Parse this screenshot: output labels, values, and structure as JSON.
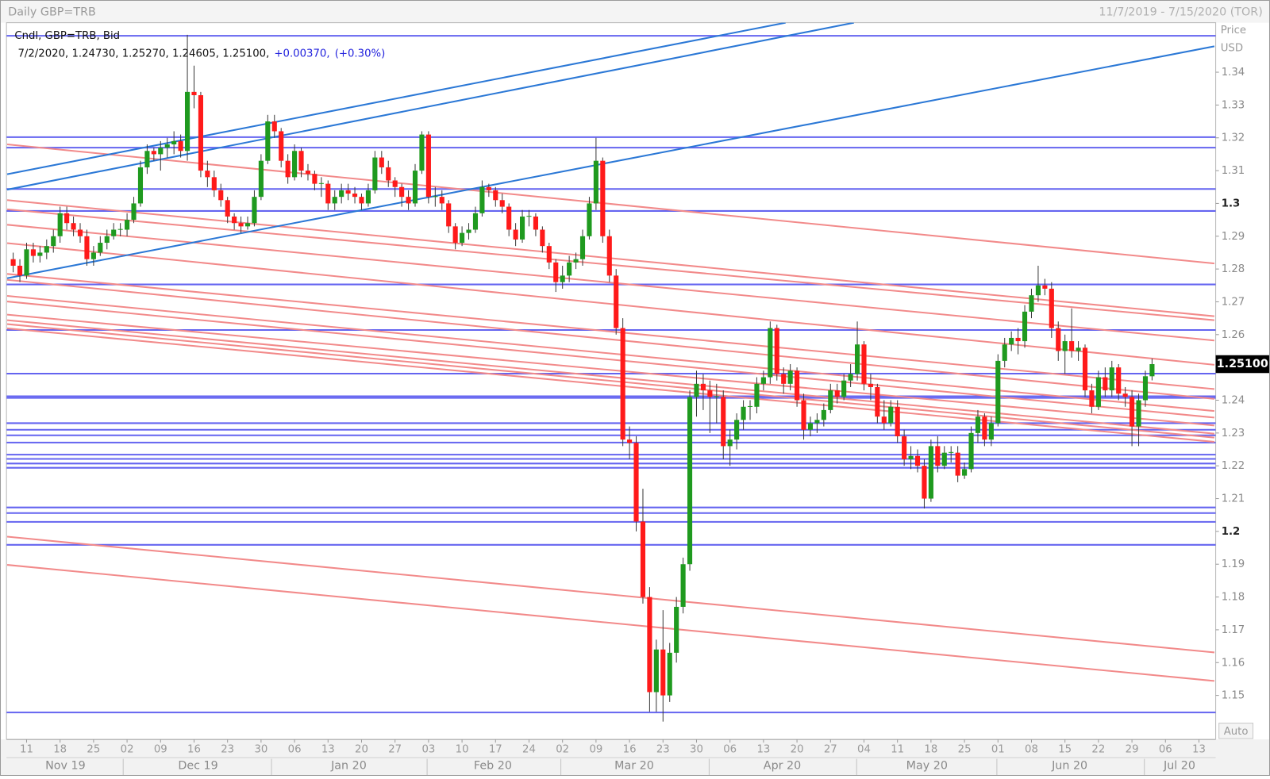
{
  "chart_data": {
    "type": "candlestick",
    "title": "Daily GBP=TRB",
    "date_range": "11/7/2019 - 7/15/2020 (TOR)",
    "legend": "Cndl, GBP=TRB, Bid",
    "info": "7/2/2020, 1.24730, 1.25270, 1.24605, 1.25100,",
    "change": "+0.00370,",
    "change_pct": "(+0.30%)",
    "axis_title": "Price",
    "axis_unit": "USD",
    "scale_button": "Auto",
    "up_color": "#1f9a1f",
    "down_color": "#ff1a1a",
    "wick_color": "#3a3a3a",
    "level_color": "#6464f0",
    "channel_color": "#2b78d6",
    "trend_color": "#f28a8a",
    "last_price": {
      "value": 1.251,
      "label": "1.25100"
    },
    "xlim": [
      -1,
      179.5
    ],
    "ylim": [
      1.1366,
      1.3551
    ],
    "yticks": [
      1.15,
      1.16,
      1.17,
      1.18,
      1.19,
      1.2,
      1.21,
      1.22,
      1.23,
      1.24,
      1.25,
      1.26,
      1.27,
      1.28,
      1.29,
      1.3,
      1.31,
      1.32,
      1.33,
      1.34
    ],
    "xticks": [
      {
        "value": 2,
        "label": "11"
      },
      {
        "value": 7,
        "label": "18"
      },
      {
        "value": 12,
        "label": "25"
      },
      {
        "value": 17,
        "label": "02"
      },
      {
        "value": 22,
        "label": "09"
      },
      {
        "value": 27,
        "label": "16"
      },
      {
        "value": 32,
        "label": "23"
      },
      {
        "value": 37,
        "label": "30"
      },
      {
        "value": 42,
        "label": "06"
      },
      {
        "value": 47,
        "label": "13"
      },
      {
        "value": 52,
        "label": "20"
      },
      {
        "value": 57,
        "label": "27"
      },
      {
        "value": 62,
        "label": "03"
      },
      {
        "value": 67,
        "label": "10"
      },
      {
        "value": 72,
        "label": "17"
      },
      {
        "value": 77,
        "label": "24"
      },
      {
        "value": 82,
        "label": "02"
      },
      {
        "value": 87,
        "label": "09"
      },
      {
        "value": 92,
        "label": "16"
      },
      {
        "value": 97,
        "label": "23"
      },
      {
        "value": 102,
        "label": "30"
      },
      {
        "value": 107,
        "label": "06"
      },
      {
        "value": 112,
        "label": "13"
      },
      {
        "value": 117,
        "label": "20"
      },
      {
        "value": 122,
        "label": "27"
      },
      {
        "value": 127,
        "label": "04"
      },
      {
        "value": 132,
        "label": "11"
      },
      {
        "value": 137,
        "label": "18"
      },
      {
        "value": 142,
        "label": "25"
      },
      {
        "value": 147,
        "label": "01"
      },
      {
        "value": 152,
        "label": "08"
      },
      {
        "value": 157,
        "label": "15"
      },
      {
        "value": 162,
        "label": "22"
      },
      {
        "value": 167,
        "label": "29"
      },
      {
        "value": 172,
        "label": "06"
      },
      {
        "value": 177,
        "label": "13"
      }
    ],
    "months": [
      {
        "value": 7.8,
        "label": "Nov 19"
      },
      {
        "value": 27.6,
        "label": "Dec 19"
      },
      {
        "value": 50.1,
        "label": "Jan 20"
      },
      {
        "value": 71.6,
        "label": "Feb 20"
      },
      {
        "value": 92.7,
        "label": "Mar 20"
      },
      {
        "value": 114.8,
        "label": "Apr 20"
      },
      {
        "value": 136.4,
        "label": "May 20"
      },
      {
        "value": 157.7,
        "label": "Jun 20"
      },
      {
        "value": 174.1,
        "label": "Jul 20"
      }
    ],
    "levels": [
      1.3511,
      1.3202,
      1.317,
      1.3044,
      1.2977,
      1.2753,
      1.2614,
      1.2481,
      1.2412,
      1.2407,
      1.233,
      1.231,
      1.2293,
      1.2271,
      1.2234,
      1.2221,
      1.2207,
      1.2194,
      1.2073,
      1.2056,
      1.2029,
      1.1959,
      1.1448
    ],
    "channels": [
      {
        "x": [
          -0.9,
          115.3
        ],
        "y": [
          1.3089,
          1.3551
        ]
      },
      {
        "x": [
          -0.9,
          125.5
        ],
        "y": [
          1.3042,
          1.3551
        ]
      },
      {
        "x": [
          -0.9,
          179.3
        ],
        "y": [
          1.2772,
          1.3479
        ]
      }
    ],
    "trends": [
      {
        "x": [
          -0.9,
          179.3
        ],
        "y": [
          1.318,
          1.2817
        ]
      },
      {
        "x": [
          -0.9,
          179.3
        ],
        "y": [
          1.301,
          1.2656
        ]
      },
      {
        "x": [
          -0.9,
          179.3
        ],
        "y": [
          1.2982,
          1.2644
        ]
      },
      {
        "x": [
          -0.9,
          179.3
        ],
        "y": [
          1.2935,
          1.2582
        ]
      },
      {
        "x": [
          -0.9,
          179.3
        ],
        "y": [
          1.2879,
          1.2508
        ]
      },
      {
        "x": [
          -0.9,
          179.3
        ],
        "y": [
          1.2785,
          1.2434
        ]
      },
      {
        "x": [
          -0.9,
          179.3
        ],
        "y": [
          1.2767,
          1.2404
        ]
      },
      {
        "x": [
          -0.9,
          179.3
        ],
        "y": [
          1.2718,
          1.2367
        ]
      },
      {
        "x": [
          -0.9,
          179.3
        ],
        "y": [
          1.2701,
          1.2347
        ]
      },
      {
        "x": [
          -0.9,
          179.3
        ],
        "y": [
          1.2661,
          1.2323
        ]
      },
      {
        "x": [
          -0.9,
          179.3
        ],
        "y": [
          1.2644,
          1.2298
        ]
      },
      {
        "x": [
          -0.9,
          179.3
        ],
        "y": [
          1.2632,
          1.2286
        ]
      },
      {
        "x": [
          -0.9,
          179.3
        ],
        "y": [
          1.2619,
          1.2273
        ]
      },
      {
        "x": [
          -0.9,
          179.3
        ],
        "y": [
          1.1984,
          1.1631
        ]
      },
      {
        "x": [
          -0.9,
          179.3
        ],
        "y": [
          1.1898,
          1.1544
        ]
      }
    ],
    "candles": [
      [
        1.283,
        1.285,
        1.279,
        1.281
      ],
      [
        1.281,
        1.283,
        1.276,
        1.278
      ],
      [
        1.278,
        1.288,
        1.277,
        1.286
      ],
      [
        1.286,
        1.288,
        1.282,
        1.284
      ],
      [
        1.284,
        1.287,
        1.282,
        1.285
      ],
      [
        1.285,
        1.289,
        1.283,
        1.287
      ],
      [
        1.287,
        1.292,
        1.285,
        1.29
      ],
      [
        1.29,
        1.299,
        1.288,
        1.297
      ],
      [
        1.297,
        1.299,
        1.292,
        1.294
      ],
      [
        1.294,
        1.296,
        1.29,
        1.292
      ],
      [
        1.292,
        1.294,
        1.288,
        1.29
      ],
      [
        1.29,
        1.292,
        1.281,
        1.283
      ],
      [
        1.283,
        1.287,
        1.281,
        1.285
      ],
      [
        1.285,
        1.29,
        1.284,
        1.288
      ],
      [
        1.288,
        1.292,
        1.286,
        1.29
      ],
      [
        1.29,
        1.294,
        1.289,
        1.292
      ],
      [
        1.292,
        1.294,
        1.29,
        1.2922
      ],
      [
        1.292,
        1.297,
        1.29,
        1.295
      ],
      [
        1.295,
        1.302,
        1.294,
        1.3
      ],
      [
        1.3,
        1.313,
        1.299,
        1.311
      ],
      [
        1.311,
        1.318,
        1.309,
        1.316
      ],
      [
        1.316,
        1.317,
        1.313,
        1.315
      ],
      [
        1.315,
        1.319,
        1.31,
        1.317
      ],
      [
        1.317,
        1.32,
        1.314,
        1.318
      ],
      [
        1.318,
        1.322,
        1.315,
        1.319
      ],
      [
        1.319,
        1.321,
        1.314,
        1.316
      ],
      [
        1.316,
        1.3514,
        1.313,
        1.334
      ],
      [
        1.334,
        1.342,
        1.329,
        1.333
      ],
      [
        1.333,
        1.334,
        1.308,
        1.31
      ],
      [
        1.31,
        1.313,
        1.305,
        1.308
      ],
      [
        1.308,
        1.31,
        1.302,
        1.304
      ],
      [
        1.304,
        1.306,
        1.299,
        1.301
      ],
      [
        1.301,
        1.302,
        1.294,
        1.296
      ],
      [
        1.296,
        1.297,
        1.292,
        1.294
      ],
      [
        1.294,
        1.296,
        1.291,
        1.293
      ],
      [
        1.293,
        1.296,
        1.292,
        1.294
      ],
      [
        1.294,
        1.304,
        1.293,
        1.302
      ],
      [
        1.302,
        1.315,
        1.301,
        1.313
      ],
      [
        1.313,
        1.327,
        1.312,
        1.325
      ],
      [
        1.325,
        1.327,
        1.32,
        1.322
      ],
      [
        1.322,
        1.323,
        1.311,
        1.313
      ],
      [
        1.313,
        1.315,
        1.306,
        1.308
      ],
      [
        1.308,
        1.318,
        1.307,
        1.316
      ],
      [
        1.316,
        1.317,
        1.308,
        1.31
      ],
      [
        1.31,
        1.312,
        1.307,
        1.309
      ],
      [
        1.309,
        1.31,
        1.304,
        1.306
      ],
      [
        1.306,
        1.308,
        1.302,
        1.3062
      ],
      [
        1.306,
        1.307,
        1.298,
        1.3
      ],
      [
        1.3,
        1.304,
        1.298,
        1.302
      ],
      [
        1.302,
        1.306,
        1.3,
        1.304
      ],
      [
        1.304,
        1.306,
        1.301,
        1.303
      ],
      [
        1.303,
        1.305,
        1.3,
        1.302
      ],
      [
        1.302,
        1.303,
        1.298,
        1.3
      ],
      [
        1.3,
        1.306,
        1.299,
        1.304
      ],
      [
        1.304,
        1.316,
        1.303,
        1.314
      ],
      [
        1.314,
        1.316,
        1.309,
        1.311
      ],
      [
        1.311,
        1.313,
        1.305,
        1.307
      ],
      [
        1.307,
        1.308,
        1.302,
        1.305
      ],
      [
        1.305,
        1.306,
        1.299,
        1.302
      ],
      [
        1.302,
        1.304,
        1.298,
        1.3
      ],
      [
        1.3,
        1.312,
        1.299,
        1.31
      ],
      [
        1.31,
        1.322,
        1.309,
        1.321
      ],
      [
        1.321,
        1.322,
        1.3,
        1.302
      ],
      [
        1.302,
        1.305,
        1.299,
        1.3022
      ],
      [
        1.302,
        1.304,
        1.298,
        1.3
      ],
      [
        1.3,
        1.301,
        1.291,
        1.293
      ],
      [
        1.293,
        1.294,
        1.286,
        1.288
      ],
      [
        1.288,
        1.293,
        1.287,
        1.291
      ],
      [
        1.291,
        1.294,
        1.289,
        1.292
      ],
      [
        1.292,
        1.299,
        1.291,
        1.297
      ],
      [
        1.297,
        1.307,
        1.296,
        1.305
      ],
      [
        1.305,
        1.306,
        1.302,
        1.304
      ],
      [
        1.304,
        1.305,
        1.299,
        1.301
      ],
      [
        1.301,
        1.303,
        1.297,
        1.299
      ],
      [
        1.299,
        1.3,
        1.29,
        1.292
      ],
      [
        1.292,
        1.294,
        1.287,
        1.289
      ],
      [
        1.289,
        1.298,
        1.288,
        1.296
      ],
      [
        1.296,
        1.298,
        1.293,
        1.2962
      ],
      [
        1.296,
        1.297,
        1.29,
        1.292
      ],
      [
        1.292,
        1.293,
        1.285,
        1.287
      ],
      [
        1.287,
        1.288,
        1.28,
        1.282
      ],
      [
        1.282,
        1.283,
        1.273,
        1.276
      ],
      [
        1.276,
        1.281,
        1.274,
        1.278
      ],
      [
        1.278,
        1.284,
        1.276,
        1.282
      ],
      [
        1.282,
        1.285,
        1.28,
        1.283
      ],
      [
        1.283,
        1.292,
        1.281,
        1.29
      ],
      [
        1.29,
        1.302,
        1.289,
        1.3
      ],
      [
        1.3,
        1.32,
        1.298,
        1.313
      ],
      [
        1.313,
        1.314,
        1.288,
        1.29
      ],
      [
        1.29,
        1.292,
        1.276,
        1.278
      ],
      [
        1.278,
        1.28,
        1.26,
        1.262
      ],
      [
        1.262,
        1.265,
        1.226,
        1.228
      ],
      [
        1.228,
        1.232,
        1.222,
        1.227
      ],
      [
        1.227,
        1.229,
        1.2,
        1.203
      ],
      [
        1.203,
        1.213,
        1.178,
        1.18
      ],
      [
        1.18,
        1.183,
        1.145,
        1.151
      ],
      [
        1.151,
        1.167,
        1.145,
        1.164
      ],
      [
        1.164,
        1.176,
        1.142,
        1.15
      ],
      [
        1.15,
        1.166,
        1.148,
        1.163
      ],
      [
        1.163,
        1.18,
        1.16,
        1.177
      ],
      [
        1.177,
        1.192,
        1.175,
        1.19
      ],
      [
        1.19,
        1.243,
        1.188,
        1.241
      ],
      [
        1.241,
        1.249,
        1.235,
        1.245
      ],
      [
        1.245,
        1.248,
        1.237,
        1.243
      ],
      [
        1.243,
        1.246,
        1.23,
        1.241
      ],
      [
        1.241,
        1.245,
        1.233,
        1.2412
      ],
      [
        1.241,
        1.243,
        1.222,
        1.226
      ],
      [
        1.226,
        1.231,
        1.22,
        1.228
      ],
      [
        1.228,
        1.236,
        1.225,
        1.234
      ],
      [
        1.234,
        1.24,
        1.231,
        1.238
      ],
      [
        1.238,
        1.24,
        1.234,
        1.2382
      ],
      [
        1.238,
        1.247,
        1.236,
        1.245
      ],
      [
        1.245,
        1.249,
        1.243,
        1.247
      ],
      [
        1.247,
        1.264,
        1.245,
        1.262
      ],
      [
        1.262,
        1.263,
        1.246,
        1.248
      ],
      [
        1.248,
        1.25,
        1.242,
        1.245
      ],
      [
        1.245,
        1.251,
        1.243,
        1.249
      ],
      [
        1.249,
        1.25,
        1.238,
        1.24
      ],
      [
        1.24,
        1.242,
        1.228,
        1.231
      ],
      [
        1.231,
        1.235,
        1.229,
        1.233
      ],
      [
        1.233,
        1.236,
        1.23,
        1.234
      ],
      [
        1.234,
        1.239,
        1.232,
        1.237
      ],
      [
        1.237,
        1.245,
        1.236,
        1.243
      ],
      [
        1.243,
        1.245,
        1.239,
        1.241
      ],
      [
        1.241,
        1.248,
        1.24,
        1.246
      ],
      [
        1.246,
        1.251,
        1.244,
        1.248
      ],
      [
        1.248,
        1.264,
        1.246,
        1.257
      ],
      [
        1.257,
        1.258,
        1.243,
        1.245
      ],
      [
        1.245,
        1.248,
        1.24,
        1.244
      ],
      [
        1.244,
        1.245,
        1.233,
        1.235
      ],
      [
        1.235,
        1.24,
        1.231,
        1.233
      ],
      [
        1.233,
        1.24,
        1.232,
        1.238
      ],
      [
        1.238,
        1.24,
        1.227,
        1.229
      ],
      [
        1.229,
        1.231,
        1.22,
        1.222
      ],
      [
        1.222,
        1.226,
        1.219,
        1.223
      ],
      [
        1.223,
        1.225,
        1.218,
        1.22
      ],
      [
        1.22,
        1.222,
        1.207,
        1.21
      ],
      [
        1.21,
        1.228,
        1.209,
        1.226
      ],
      [
        1.226,
        1.229,
        1.218,
        1.22
      ],
      [
        1.22,
        1.226,
        1.219,
        1.224
      ],
      [
        1.224,
        1.226,
        1.221,
        1.2242
      ],
      [
        1.224,
        1.226,
        1.215,
        1.217
      ],
      [
        1.217,
        1.221,
        1.216,
        1.219
      ],
      [
        1.219,
        1.232,
        1.218,
        1.23
      ],
      [
        1.23,
        1.237,
        1.227,
        1.235
      ],
      [
        1.235,
        1.236,
        1.226,
        1.228
      ],
      [
        1.228,
        1.235,
        1.226,
        1.233
      ],
      [
        1.233,
        1.254,
        1.232,
        1.252
      ],
      [
        1.252,
        1.259,
        1.25,
        1.257
      ],
      [
        1.257,
        1.261,
        1.255,
        1.259
      ],
      [
        1.259,
        1.262,
        1.254,
        1.258
      ],
      [
        1.258,
        1.269,
        1.256,
        1.267
      ],
      [
        1.267,
        1.274,
        1.265,
        1.272
      ],
      [
        1.272,
        1.281,
        1.27,
        1.275
      ],
      [
        1.275,
        1.277,
        1.272,
        1.274
      ],
      [
        1.274,
        1.276,
        1.259,
        1.262
      ],
      [
        1.262,
        1.264,
        1.252,
        1.255
      ],
      [
        1.255,
        1.26,
        1.248,
        1.258
      ],
      [
        1.258,
        1.268,
        1.253,
        1.255
      ],
      [
        1.255,
        1.258,
        1.252,
        1.256
      ],
      [
        1.256,
        1.257,
        1.241,
        1.243
      ],
      [
        1.243,
        1.245,
        1.236,
        1.238
      ],
      [
        1.238,
        1.249,
        1.237,
        1.247
      ],
      [
        1.247,
        1.25,
        1.241,
        1.243
      ],
      [
        1.243,
        1.252,
        1.241,
        1.25
      ],
      [
        1.25,
        1.251,
        1.24,
        1.242
      ],
      [
        1.242,
        1.244,
        1.238,
        1.241
      ],
      [
        1.241,
        1.243,
        1.226,
        1.232
      ],
      [
        1.232,
        1.242,
        1.226,
        1.24
      ],
      [
        1.24,
        1.249,
        1.238,
        1.2473
      ],
      [
        1.2473,
        1.2527,
        1.24605,
        1.251
      ]
    ]
  }
}
